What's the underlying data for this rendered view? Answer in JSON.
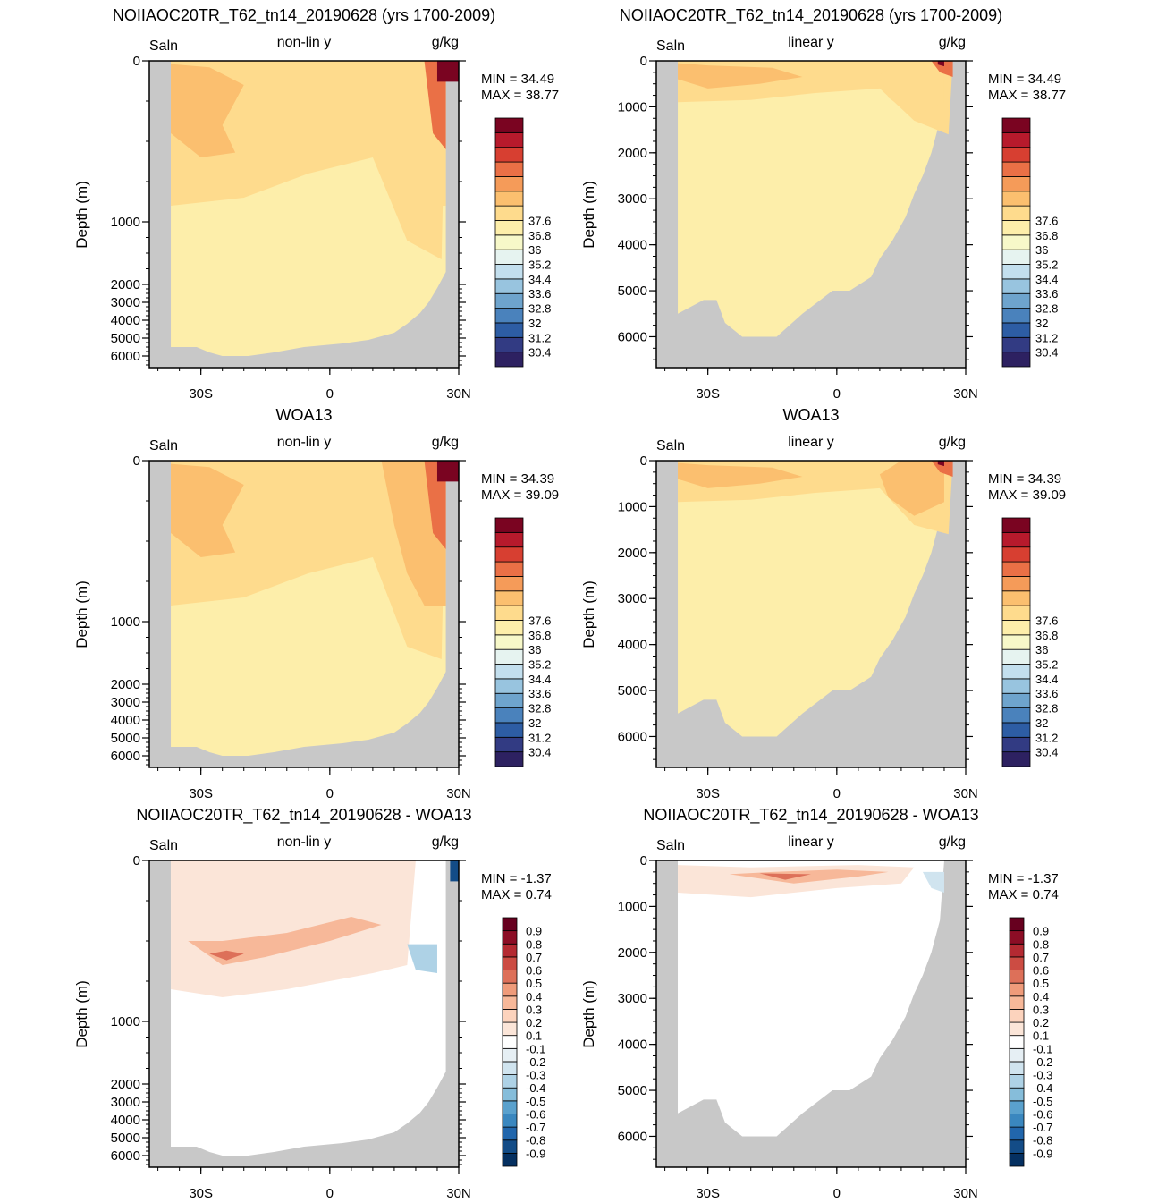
{
  "colors": {
    "land": "#c8c8c8",
    "saln_scale": [
      "#2d2161",
      "#323b83",
      "#2d5da4",
      "#4a82bc",
      "#6ea4cd",
      "#98c4df",
      "#c3dfee",
      "#e6f3f0",
      "#f7f8c9",
      "#fdeeaa",
      "#fedb8d",
      "#fbbf6f",
      "#f59b59",
      "#ea7046",
      "#d73f31",
      "#b71a2c",
      "#7a0421"
    ],
    "diff_scale": [
      "#053061",
      "#134c87",
      "#2166ac",
      "#3a87bf",
      "#5aa1cd",
      "#86bdda",
      "#aed2e6",
      "#d0e4ef",
      "#e6eff4",
      "#ffffff",
      "#fbe5d8",
      "#fcd3bd",
      "#f7b899",
      "#ef9b7a",
      "#dd7059",
      "#cc4c43",
      "#b42a32",
      "#8c0d25",
      "#67001f"
    ]
  },
  "chart_data": [
    {
      "type": "heatmap",
      "title": "NOIIAOC20TR_T62_tn14_20190628 (yrs 1700-2009)",
      "left_label": "Saln",
      "center_label": "non-lin y",
      "right_label": "g/kg",
      "ylabel": "Depth (m)",
      "ytick_labels": [
        "0",
        "1000",
        "2000",
        "3000",
        "4000",
        "5000",
        "6000"
      ],
      "xtick_labels": [
        "30S",
        "0",
        "30N"
      ],
      "min_label": "MIN =  34.49",
      "max_label": "MAX =  38.77",
      "colorbar_labels": [
        "30.4",
        "31.2",
        "32",
        "32.8",
        "33.6",
        "34.4",
        "35.2",
        "36",
        "36.8",
        "37.6"
      ]
    },
    {
      "type": "heatmap",
      "title": "NOIIAOC20TR_T62_tn14_20190628 (yrs 1700-2009)",
      "left_label": "Saln",
      "center_label": "linear y",
      "right_label": "g/kg",
      "ylabel": "Depth (m)",
      "ytick_labels": [
        "0",
        "1000",
        "2000",
        "3000",
        "4000",
        "5000",
        "6000"
      ],
      "xtick_labels": [
        "30S",
        "0",
        "30N"
      ],
      "min_label": "MIN =  34.49",
      "max_label": "MAX =  38.77",
      "colorbar_labels": [
        "30.4",
        "31.2",
        "32",
        "32.8",
        "33.6",
        "34.4",
        "35.2",
        "36",
        "36.8",
        "37.6"
      ]
    },
    {
      "type": "heatmap",
      "title": "WOA13",
      "left_label": "Saln",
      "center_label": "non-lin y",
      "right_label": "g/kg",
      "ylabel": "Depth (m)",
      "ytick_labels": [
        "0",
        "1000",
        "2000",
        "3000",
        "4000",
        "5000",
        "6000"
      ],
      "xtick_labels": [
        "30S",
        "0",
        "30N"
      ],
      "min_label": "MIN =  34.39",
      "max_label": "MAX =  39.09",
      "colorbar_labels": [
        "30.4",
        "31.2",
        "32",
        "32.8",
        "33.6",
        "34.4",
        "35.2",
        "36",
        "36.8",
        "37.6"
      ]
    },
    {
      "type": "heatmap",
      "title": "WOA13",
      "left_label": "Saln",
      "center_label": "linear y",
      "right_label": "g/kg",
      "ylabel": "Depth (m)",
      "ytick_labels": [
        "0",
        "1000",
        "2000",
        "3000",
        "4000",
        "5000",
        "6000"
      ],
      "xtick_labels": [
        "30S",
        "0",
        "30N"
      ],
      "min_label": "MIN =  34.39",
      "max_label": "MAX =  39.09",
      "colorbar_labels": [
        "30.4",
        "31.2",
        "32",
        "32.8",
        "33.6",
        "34.4",
        "35.2",
        "36",
        "36.8",
        "37.6"
      ]
    },
    {
      "type": "heatmap",
      "title": "NOIIAOC20TR_T62_tn14_20190628 - WOA13",
      "left_label": "Saln",
      "center_label": "non-lin y",
      "right_label": "g/kg",
      "ylabel": "Depth (m)",
      "ytick_labels": [
        "0",
        "1000",
        "2000",
        "3000",
        "4000",
        "5000",
        "6000"
      ],
      "xtick_labels": [
        "30S",
        "0",
        "30N"
      ],
      "min_label": "MIN = -1.37",
      "max_label": "MAX =  0.74",
      "colorbar_labels": [
        "-0.9",
        "-0.8",
        "-0.7",
        "-0.6",
        "-0.5",
        "-0.4",
        "-0.3",
        "-0.2",
        "-0.1",
        "0.1",
        "0.2",
        "0.3",
        "0.4",
        "0.5",
        "0.6",
        "0.7",
        "0.8",
        "0.9"
      ]
    },
    {
      "type": "heatmap",
      "title": "NOIIAOC20TR_T62_tn14_20190628 - WOA13",
      "left_label": "Saln",
      "center_label": "linear y",
      "right_label": "g/kg",
      "ylabel": "Depth (m)",
      "ytick_labels": [
        "0",
        "1000",
        "2000",
        "3000",
        "4000",
        "5000",
        "6000"
      ],
      "xtick_labels": [
        "30S",
        "0",
        "30N"
      ],
      "min_label": "MIN = -1.37",
      "max_label": "MAX =  0.74",
      "colorbar_labels": [
        "-0.9",
        "-0.8",
        "-0.7",
        "-0.6",
        "-0.5",
        "-0.4",
        "-0.3",
        "-0.2",
        "-0.1",
        "0.1",
        "0.2",
        "0.3",
        "0.4",
        "0.5",
        "0.6",
        "0.7",
        "0.8",
        "0.9"
      ]
    }
  ]
}
